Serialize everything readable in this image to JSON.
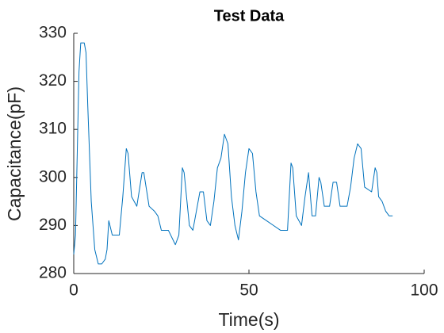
{
  "chart_data": {
    "type": "line",
    "title": "Test Data",
    "x_label": "Time(s)",
    "y_label": "Capacitance(pF)",
    "x": [
      0,
      0.5,
      1,
      1.5,
      2,
      3,
      3.5,
      4,
      5,
      6,
      7,
      8,
      9,
      9.5,
      10,
      11,
      13,
      14,
      15,
      15.5,
      16.5,
      18,
      19.5,
      20,
      21.5,
      23,
      24,
      25,
      27,
      29,
      30,
      31,
      31.5,
      33,
      34,
      35,
      36,
      37,
      38,
      39,
      40,
      41,
      42,
      43,
      44,
      45,
      46,
      47,
      48,
      49,
      50,
      51,
      52,
      53,
      55,
      57,
      59,
      61,
      62,
      62.5,
      63.5,
      65,
      66,
      67,
      68,
      69,
      70,
      70.5,
      71.5,
      73,
      74,
      75,
      76,
      78,
      79,
      80,
      81,
      82,
      83,
      85,
      86,
      86.5,
      87,
      88,
      89,
      90,
      91
    ],
    "series": [
      {
        "name": "Capacitance",
        "color": "#0072bd",
        "values": [
          284,
          288,
          305,
          322,
          328,
          328,
          326,
          315,
          295,
          285,
          282,
          282,
          283,
          285,
          291,
          288,
          288,
          296,
          306,
          305,
          296,
          294,
          301,
          301,
          294,
          293,
          292,
          289,
          289,
          286,
          288,
          302,
          301,
          290,
          289,
          293,
          297,
          297,
          291,
          290,
          295,
          302,
          304,
          309,
          307,
          296,
          290,
          287,
          293,
          301,
          306,
          305,
          297,
          292,
          291,
          290,
          289,
          289,
          303,
          302,
          292,
          290,
          296,
          301,
          292,
          292,
          300,
          299,
          294,
          294,
          299,
          299,
          294,
          294,
          298,
          304,
          307,
          306,
          298,
          297,
          302,
          301,
          296,
          295,
          293,
          292,
          292
        ]
      }
    ],
    "xlim": [
      0,
      100
    ],
    "ylim": [
      280,
      330
    ],
    "xticks": [
      0,
      50,
      100
    ],
    "yticks": [
      280,
      290,
      300,
      310,
      320,
      330
    ]
  }
}
